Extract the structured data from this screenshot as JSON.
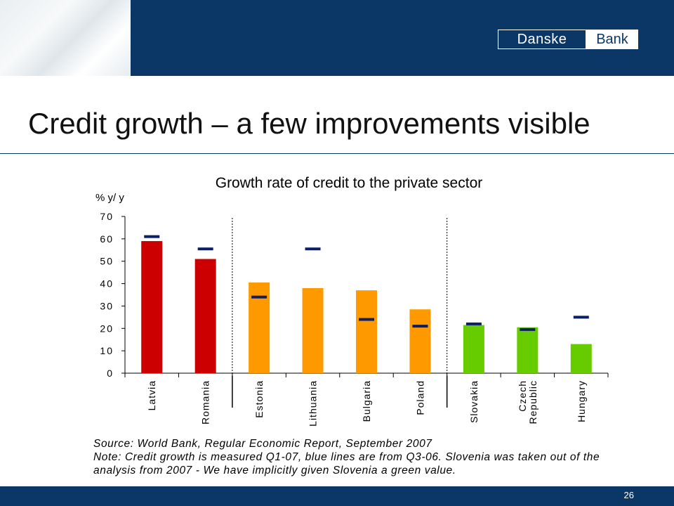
{
  "slide": {
    "title": "Credit growth – a few improvements visible",
    "page_number": "26",
    "logo": {
      "word1": "Danske",
      "word2": "Bank"
    }
  },
  "colors": {
    "brand_blue": "#0b3766",
    "red": "#cc0000",
    "orange": "#ff9900",
    "green": "#66cc00",
    "marker": "#0b1f66"
  },
  "notes": {
    "source": "Source: World Bank, Regular Economic Report, September 2007",
    "note_line1": "Note: Credit growth is measured Q1-07, blue lines are from Q3-06. Slovenia was taken out of the",
    "note_line2": "analysis from 2007 - We have implicitly given Slovenia a green value."
  },
  "chart_data": {
    "type": "bar",
    "title": "Growth rate of credit to the private sector",
    "ylabel": "% y/ y",
    "xlabel": "",
    "ylim": [
      0,
      70
    ],
    "yticks": [
      0,
      10,
      20,
      30,
      40,
      50,
      60,
      70
    ],
    "grid": false,
    "legend": "none",
    "categories": [
      "Latvia",
      "Romania",
      "Estonia",
      "Lithuania",
      "Bulgaria",
      "Poland",
      "Slovakia",
      "Czech Republic",
      "Hungary"
    ],
    "category_label_lines": [
      [
        "Latvia"
      ],
      [
        "Romania"
      ],
      [
        "Estonia"
      ],
      [
        "Lithuania"
      ],
      [
        "Bulgaria"
      ],
      [
        "Poland"
      ],
      [
        "Slovakia"
      ],
      [
        "Czech",
        "Republic"
      ],
      [
        "Hungary"
      ]
    ],
    "series": [
      {
        "values": [
          59,
          51,
          40.5,
          38,
          37,
          28.5,
          21.5,
          20.5,
          13
        ],
        "type": "bar"
      },
      {
        "values": [
          61,
          55.5,
          34,
          55.5,
          24,
          21,
          22,
          19.5,
          25
        ],
        "type": "marker"
      }
    ],
    "bar_colors": [
      "#cc0000",
      "#cc0000",
      "#ff9900",
      "#ff9900",
      "#ff9900",
      "#ff9900",
      "#66cc00",
      "#66cc00",
      "#66cc00"
    ],
    "dividers_after": [
      "Romania",
      "Poland"
    ]
  }
}
